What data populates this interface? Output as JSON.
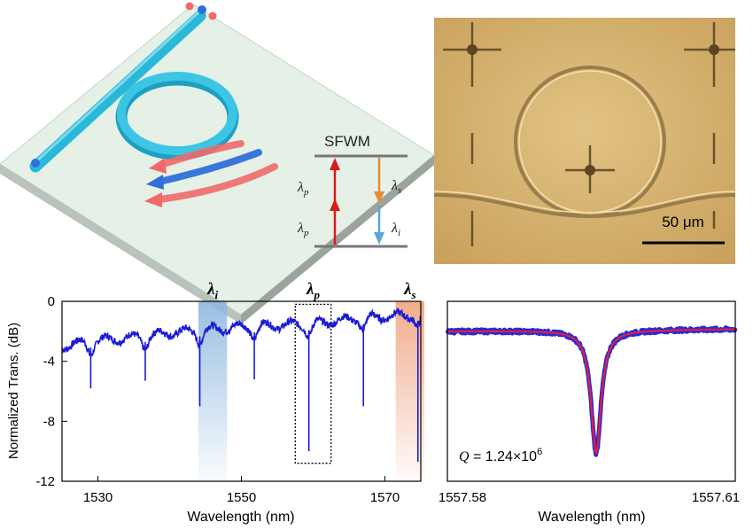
{
  "colors": {
    "waveguide": "#29b8d8",
    "chip": "#e5f0e7",
    "photon_red": "#f06a6a",
    "photon_blue": "#2f6fd9",
    "arrow_pump": "#d81b1b",
    "arrow_signal": "#e88a35",
    "arrow_idler": "#5aa5db",
    "micrograph_bg": "#d9b673",
    "trace": "#1a1ad6",
    "fit": "#e0203a",
    "idler_band": "#8fb8df",
    "signal_band": "#f0a987"
  },
  "energy_diagram": {
    "title": "SFWM",
    "pump_label_1": "λp",
    "pump_label_2": "λp",
    "signal_label": "λs",
    "idler_label": "λi"
  },
  "micrograph": {
    "scale_label": "50 μm"
  },
  "chart_data": [
    {
      "type": "line",
      "title": "",
      "xlabel": "Wavelength (nm)",
      "ylabel": "Normalized Trans. (dB)",
      "xlim": [
        1525,
        1575
      ],
      "ylim": [
        -12,
        0
      ],
      "xticks": [
        1530,
        1550,
        1570
      ],
      "yticks": [
        0,
        -4,
        -8,
        -12
      ],
      "xtick_labels": [
        "1530",
        "1550",
        "1570"
      ],
      "ytick_labels": [
        "0",
        "-4",
        "-8",
        "-12"
      ],
      "baseline": {
        "x": [
          1525,
          1530,
          1535,
          1540,
          1545,
          1550,
          1555,
          1560,
          1565,
          1570,
          1575
        ],
        "y": [
          -3.0,
          -2.6,
          -2.4,
          -2.1,
          -1.9,
          -1.7,
          -1.6,
          -1.5,
          -1.2,
          -1.0,
          -0.9
        ]
      },
      "resonances": [
        {
          "x": 1529.0,
          "depth": -5.8
        },
        {
          "x": 1536.6,
          "depth": -5.3
        },
        {
          "x": 1544.2,
          "depth": -7.0
        },
        {
          "x": 1551.8,
          "depth": -5.2
        },
        {
          "x": 1559.4,
          "depth": -10.0
        },
        {
          "x": 1567.0,
          "depth": -7.0
        },
        {
          "x": 1574.6,
          "depth": -10.7
        }
      ],
      "highlight_bands": [
        {
          "label": "λi",
          "x": [
            1544.0,
            1548.0
          ],
          "color": "blue"
        },
        {
          "label": "λp",
          "x": [
            1557.5,
            1562.5
          ],
          "style": "dotted-box",
          "y": [
            -10.8,
            -0.2
          ]
        },
        {
          "label": "λs",
          "x": [
            1571.5,
            1575.5
          ],
          "color": "orange"
        }
      ]
    },
    {
      "type": "line",
      "title": "",
      "xlabel": "Wavelength (nm)",
      "ylabel": "",
      "xlim": [
        1557.58,
        1557.61
      ],
      "ylim": [
        -12,
        0
      ],
      "xtick_labels": [
        "1557.58",
        "1557.61"
      ],
      "series": [
        {
          "name": "",
          "kind": "measured",
          "center": 1557.5955,
          "fwhm": 0.00126,
          "baseline": -2.0,
          "min": -10.2
        },
        {
          "name": "",
          "kind": "fit",
          "center": 1557.5955,
          "fwhm": 0.00126,
          "baseline": -2.0,
          "min": -10.2
        }
      ],
      "annotation": {
        "q_prefix": "Q",
        "q_value": " = 1.24×10",
        "q_exp": "6"
      }
    }
  ]
}
